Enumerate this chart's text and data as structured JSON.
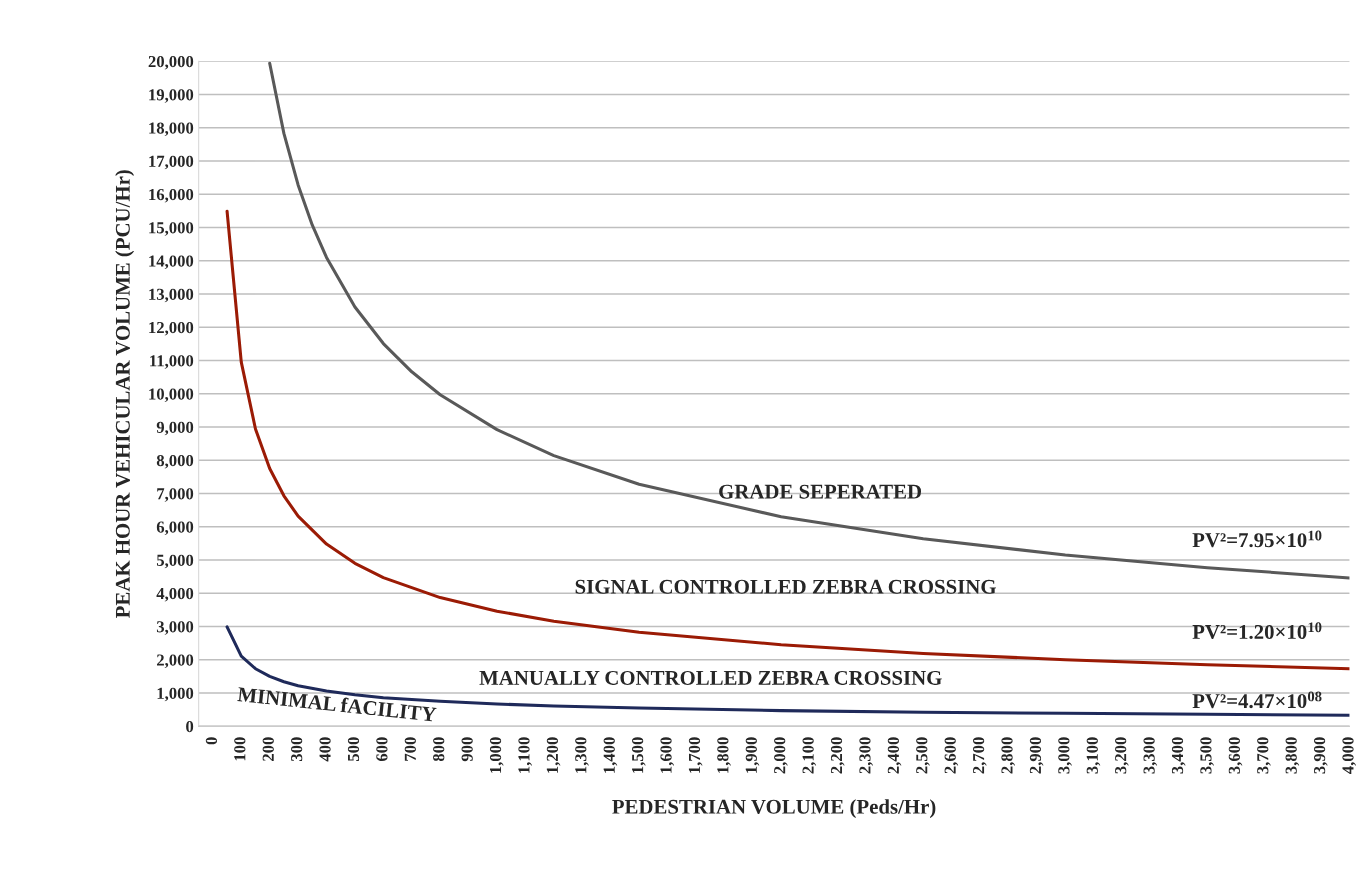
{
  "chart_data": {
    "type": "line",
    "xlabel": "PEDESTRIAN VOLUME (Peds/Hr)",
    "ylabel": "PEAK HOUR VEHICULAR VOLUME (PCU/Hr)",
    "series": [
      {
        "color": "#595959",
        "x": [
          200,
          250,
          300,
          350,
          400,
          500,
          600,
          700,
          800,
          1000,
          1200,
          1500,
          2000,
          2500,
          3000,
          3500,
          4000
        ],
        "values": [
          19940,
          17830,
          16280,
          15070,
          14100,
          12610,
          11510,
          10660,
          9970,
          8920,
          8140,
          7280,
          6300,
          5640,
          5150,
          4770,
          4460
        ]
      },
      {
        "color": "#9b1b05",
        "x": [
          50,
          100,
          150,
          200,
          250,
          300,
          400,
          500,
          600,
          800,
          1000,
          1200,
          1500,
          2000,
          2500,
          3000,
          3500,
          4000
        ],
        "values": [
          15490,
          10950,
          8940,
          7750,
          6930,
          6320,
          5480,
          4900,
          4470,
          3870,
          3460,
          3160,
          2830,
          2450,
          2190,
          2000,
          1850,
          1730
        ]
      },
      {
        "color": "#1f2a5a",
        "x": [
          50,
          100,
          150,
          200,
          250,
          300,
          400,
          500,
          600,
          800,
          1000,
          1200,
          1500,
          2000,
          2500,
          3000,
          3500,
          4000
        ],
        "values": [
          2990,
          2110,
          1730,
          1500,
          1340,
          1220,
          1060,
          950,
          860,
          750,
          670,
          610,
          550,
          470,
          420,
          390,
          360,
          330
        ]
      }
    ],
    "annotations": [
      "GRADE SEPERATED",
      "SIGNAL CONTROLLED ZEBRA CROSSING",
      "MANUALLY CONTROLLED ZEBRA CROSSING",
      "PV²=7.95×10$^{10}$",
      "PV²=1.20×10$^{10}$",
      "PV²=4.47×10$^{08}$",
      "MINIMAL fACILITY"
    ],
    "xlim": [
      -50,
      4000
    ],
    "xticks": [
      0,
      100,
      200,
      300,
      400,
      500,
      600,
      700,
      800,
      900,
      {
        "value": 1000,
        "label": "1,000"
      },
      {
        "value": 1100,
        "label": "1,100"
      },
      {
        "value": 1200,
        "label": "1,200"
      },
      {
        "value": 1300,
        "label": "1,300"
      },
      {
        "value": 1400,
        "label": "1,400"
      },
      {
        "value": 1500,
        "label": "1,500"
      },
      {
        "value": 1600,
        "label": "1,600"
      },
      {
        "value": 1700,
        "label": "1,700"
      },
      {
        "value": 1800,
        "label": "1,800"
      },
      {
        "value": 1900,
        "label": "1,900"
      },
      {
        "value": 2000,
        "label": "2,000"
      },
      {
        "value": 2100,
        "label": "2,100"
      },
      {
        "value": 2200,
        "label": "2,200"
      },
      {
        "value": 2300,
        "label": "2,300"
      },
      {
        "value": 2400,
        "label": "2,400"
      },
      {
        "value": 2500,
        "label": "2,500"
      },
      {
        "value": 2600,
        "label": "2,600"
      },
      {
        "value": 2700,
        "label": "2,700"
      },
      {
        "value": 2800,
        "label": "2,800"
      },
      {
        "value": 2900,
        "label": "2,900"
      },
      {
        "value": 3000,
        "label": "3,000"
      },
      {
        "value": 3100,
        "label": "3,100"
      },
      {
        "value": 3200,
        "label": "3,200"
      },
      {
        "value": 3300,
        "label": "3,300"
      },
      {
        "value": 3400,
        "label": "3,400"
      },
      {
        "value": 3500,
        "label": "3,500"
      },
      {
        "value": 3600,
        "label": "3,600"
      },
      {
        "value": 3700,
        "label": "3,700"
      },
      {
        "value": 3800,
        "label": "3,800"
      },
      {
        "value": 3900,
        "label": "3,900"
      },
      {
        "value": 4000,
        "label": "4,000"
      }
    ],
    "ylim": [
      0,
      20000
    ],
    "yticks": [
      0,
      {
        "value": 1000,
        "label": "1,000"
      },
      {
        "value": 2000,
        "label": "2,000"
      },
      {
        "value": 3000,
        "label": "3,000"
      },
      {
        "value": 4000,
        "label": "4,000"
      },
      {
        "value": 5000,
        "label": "5,000"
      },
      {
        "value": 6000,
        "label": "6,000"
      },
      {
        "value": 7000,
        "label": "7,000"
      },
      {
        "value": 8000,
        "label": "8,000"
      },
      {
        "value": 9000,
        "label": "9,000"
      },
      {
        "value": 10000,
        "label": "10,000"
      },
      {
        "value": 11000,
        "label": "11,000"
      },
      {
        "value": 12000,
        "label": "12,000"
      },
      {
        "value": 13000,
        "label": "13,000"
      },
      {
        "value": 14000,
        "label": "14,000"
      },
      {
        "value": 15000,
        "label": "15,000"
      },
      {
        "value": 16000,
        "label": "16,000"
      },
      {
        "value": 17000,
        "label": "17,000"
      },
      {
        "value": 18000,
        "label": "18,000"
      },
      {
        "value": 19000,
        "label": "19,000"
      },
      {
        "value": 20000,
        "label": "20,000"
      }
    ],
    "grid": "y",
    "line_style": "solid"
  }
}
